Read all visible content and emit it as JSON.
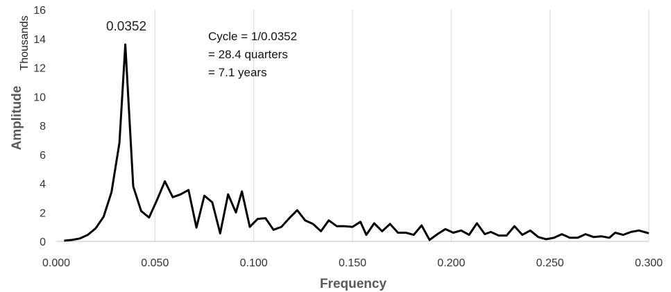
{
  "chart_data": {
    "type": "line",
    "xlabel": "Frequency",
    "ylabel": "Amplitude",
    "yunit": "Thousands",
    "xlim": [
      0,
      0.3
    ],
    "ylim": [
      0,
      16
    ],
    "grid": "vertical",
    "xticks": [
      "0.000",
      "0.050",
      "0.100",
      "0.150",
      "0.200",
      "0.250",
      "0.300"
    ],
    "yticks": [
      "0",
      "2",
      "4",
      "6",
      "8",
      "10",
      "12",
      "14",
      "16"
    ],
    "peak_label": "0.0352",
    "annotations": [
      "Cycle = 1/0.0352",
      "= 28.4 quarters",
      "= 7.1 years"
    ],
    "colors": {
      "line": "#000000",
      "grid": "#d9d9d9"
    },
    "series": [
      {
        "x": [
          0.004,
          0.008,
          0.012,
          0.016,
          0.02,
          0.024,
          0.028,
          0.032,
          0.035,
          0.039,
          0.043,
          0.047,
          0.051,
          0.055,
          0.059,
          0.063,
          0.067,
          0.071,
          0.075,
          0.079,
          0.083,
          0.087,
          0.091,
          0.094,
          0.098,
          0.102,
          0.106,
          0.11,
          0.114,
          0.118,
          0.122,
          0.126,
          0.13,
          0.134,
          0.138,
          0.142,
          0.146,
          0.15,
          0.154,
          0.157,
          0.161,
          0.165,
          0.169,
          0.173,
          0.177,
          0.181,
          0.185,
          0.189,
          0.193,
          0.197,
          0.201,
          0.205,
          0.209,
          0.213,
          0.217,
          0.22,
          0.224,
          0.228,
          0.232,
          0.236,
          0.24,
          0.244,
          0.248,
          0.252,
          0.256,
          0.26,
          0.264,
          0.268,
          0.272,
          0.276,
          0.28,
          0.283,
          0.287,
          0.291,
          0.295,
          0.299,
          0.3
        ],
        "values": [
          0.05,
          0.1,
          0.2,
          0.45,
          0.9,
          1.7,
          3.4,
          6.8,
          13.6,
          3.8,
          2.1,
          1.65,
          2.85,
          4.15,
          3.05,
          3.25,
          3.55,
          0.95,
          3.15,
          2.7,
          0.55,
          3.25,
          2.0,
          3.45,
          1.0,
          1.55,
          1.6,
          0.8,
          1.0,
          1.6,
          2.15,
          1.45,
          1.2,
          0.7,
          1.45,
          1.05,
          1.05,
          1.0,
          1.35,
          0.45,
          1.25,
          0.7,
          1.2,
          0.6,
          0.6,
          0.45,
          1.1,
          0.1,
          0.5,
          0.85,
          0.6,
          0.75,
          0.45,
          1.25,
          0.5,
          0.65,
          0.4,
          0.4,
          1.05,
          0.45,
          0.75,
          0.3,
          0.15,
          0.25,
          0.5,
          0.25,
          0.25,
          0.5,
          0.3,
          0.35,
          0.25,
          0.6,
          0.45,
          0.65,
          0.75,
          0.6,
          0.55
        ]
      }
    ]
  }
}
